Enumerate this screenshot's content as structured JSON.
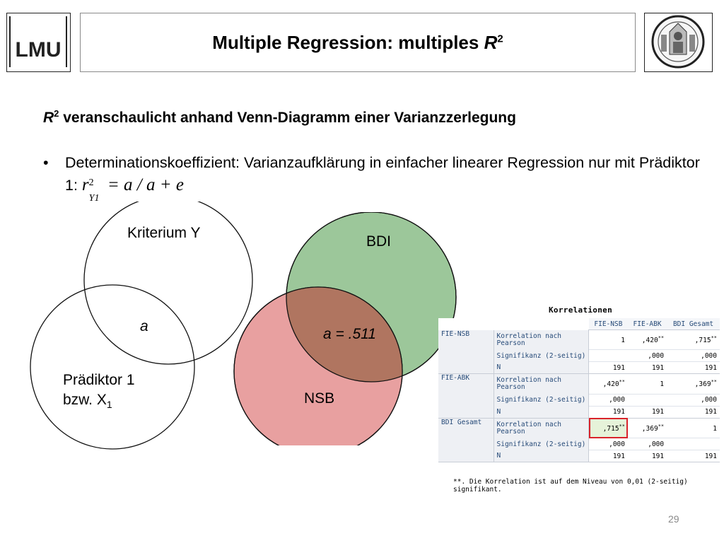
{
  "header": {
    "title_main": "Multiple Regression: multiples ",
    "title_var": "R",
    "title_sup": "2",
    "logo_left_text": "LMU"
  },
  "subtitle": {
    "var": "R",
    "sup": "2",
    "text": " veranschaulicht anhand Venn-Diagramm einer Varianzzerlegung"
  },
  "bullet": {
    "symbol": "•",
    "text": "Determinationskoeffizient: Varianzaufklärung in einfacher linearer Regression nur mit Prädiktor 1:",
    "formula_r": "r",
    "formula_sup": "2",
    "formula_sub": "Y1",
    "formula_rest": "= a / a + e"
  },
  "venn_left": {
    "criterion_label": "Kriterium Y",
    "predictor_label_line1": "Prädiktor 1",
    "predictor_label_line2": "bzw. X",
    "predictor_sub": "1",
    "overlap_label": "a"
  },
  "venn_right": {
    "top_label": "BDI",
    "bottom_label": "NSB",
    "overlap_label": "a = .511",
    "colors": {
      "green": "#9cc79a",
      "red": "#e8a0a0",
      "overlap": "#b07560"
    }
  },
  "table": {
    "title": "Korrelationen",
    "columns": [
      "FIE-NSB",
      "FIE-ABK",
      "BDI Gesamt"
    ],
    "groups": [
      {
        "name": "FIE-NSB",
        "rows": [
          {
            "stat": "Korrelation nach Pearson",
            "values": [
              "1",
              ",420",
              ",715"
            ],
            "sig": [
              "",
              "**",
              "**"
            ]
          },
          {
            "stat": "Signifikanz (2-seitig)",
            "values": [
              "",
              ",000",
              ",000"
            ],
            "sig": [
              "",
              "",
              ""
            ]
          },
          {
            "stat": "N",
            "values": [
              "191",
              "191",
              "191"
            ],
            "sig": [
              "",
              "",
              ""
            ]
          }
        ]
      },
      {
        "name": "FIE-ABK",
        "rows": [
          {
            "stat": "Korrelation nach Pearson",
            "values": [
              ",420",
              "1",
              ",369"
            ],
            "sig": [
              "**",
              "",
              "**"
            ]
          },
          {
            "stat": "Signifikanz (2-seitig)",
            "values": [
              ",000",
              "",
              ",000"
            ],
            "sig": [
              "",
              "",
              ""
            ]
          },
          {
            "stat": "N",
            "values": [
              "191",
              "191",
              "191"
            ],
            "sig": [
              "",
              "",
              ""
            ]
          }
        ]
      },
      {
        "name": "BDI Gesamt",
        "rows": [
          {
            "stat": "Korrelation nach Pearson",
            "values": [
              ",715",
              ",369",
              "1"
            ],
            "sig": [
              "**",
              "**",
              ""
            ]
          },
          {
            "stat": "Signifikanz (2-seitig)",
            "values": [
              ",000",
              ",000",
              ""
            ],
            "sig": [
              "",
              "",
              ""
            ]
          },
          {
            "stat": "N",
            "values": [
              "191",
              "191",
              "191"
            ],
            "sig": [
              "",
              "",
              ""
            ]
          }
        ]
      }
    ],
    "footnote": "**. Die Korrelation ist auf dem Niveau von 0,01 (2-seitig) signifikant."
  },
  "page_number": "29"
}
